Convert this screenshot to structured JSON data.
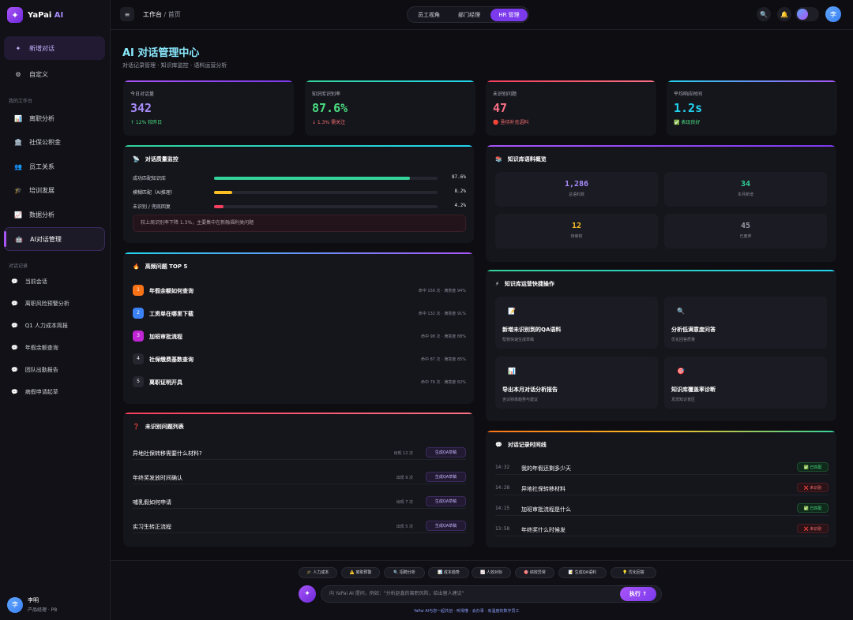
{
  "app": {
    "logo_main": "YaPai",
    "logo_accent": " AI"
  },
  "sidebar": {
    "new_chat": "新增对话",
    "custom": "自定义",
    "section_my": "我的工作台",
    "items": [
      {
        "icon": "📊",
        "label": "离职分析"
      },
      {
        "icon": "🏛️",
        "label": "社保公积金"
      },
      {
        "icon": "👥",
        "label": "员工关系"
      },
      {
        "icon": "🎓",
        "label": "培训发展"
      },
      {
        "icon": "📈",
        "label": "数据分析"
      },
      {
        "icon": "🤖",
        "label": "AI对话管理"
      }
    ],
    "section_history": "对话记录",
    "history": [
      "当前会话",
      "离职风险预警分析",
      "Q1 人力成本简报",
      "年假余额查询",
      "团队出勤报告",
      "病假申请起草"
    ],
    "user": {
      "avatar": "李",
      "name": "李明",
      "role": "产品经理 · P8"
    }
  },
  "topbar": {
    "menu_icon": "≡",
    "crumb_main": "工作台",
    "crumb_sep": " / ",
    "crumb_sub": "首页",
    "views": [
      "员工视角",
      "部门经理",
      "HR 管理"
    ],
    "avatar": "李"
  },
  "page": {
    "title": "AI 对话管理中心",
    "subtitle": "对话记录管理 · 知识库监控 · 语料运营分析"
  },
  "stats": [
    {
      "label": "今日对话量",
      "value": "342",
      "change": "↑ 12% 较昨日",
      "color": "#a78bfa",
      "change_color": "#4ade80",
      "bar": "linear-gradient(90deg,#a855f7,#7c3aed)"
    },
    {
      "label": "知识库识别率",
      "value": "87.6%",
      "change": "↓ 1.3% 需关注",
      "color": "#4ade80",
      "change_color": "#f87171",
      "bar": "linear-gradient(90deg,#34d399,#22d3ee)"
    },
    {
      "label": "未识别问题",
      "value": "47",
      "change": "🔴 亟待补充语料",
      "color": "#fb7185",
      "change_color": "#f87171",
      "bar": "linear-gradient(90deg,#f43f5e,#fb7185)"
    },
    {
      "label": "平均响应时间",
      "value": "1.2s",
      "change": "✅ 表现良好",
      "color": "#22d3ee",
      "change_color": "#4ade80",
      "bar": "linear-gradient(90deg,#22d3ee,#a855f7)"
    }
  ],
  "quality": {
    "title": "对话质量监控",
    "icon": "📡",
    "rows": [
      {
        "label": "成功匹配知识库",
        "pct": 87.6,
        "text": "87.6%",
        "color": "#34d399"
      },
      {
        "label": "模糊匹配（AI推理）",
        "pct": 8.2,
        "text": "8.2%",
        "color": "#fbbf24"
      },
      {
        "label": "未识别 / 兜底回复",
        "pct": 4.2,
        "text": "4.2%",
        "color": "#f43f5e"
      }
    ],
    "note": "较上周识别率下降 1.3%，主要集中在新融福利类问题"
  },
  "top5": {
    "title": "高频问题 TOP 5",
    "icon": "🔥",
    "rows": [
      {
        "n": "1",
        "q": "年假余额如何查询",
        "m": "命中 156 次 · 满意度 94%",
        "color": "#f97316"
      },
      {
        "n": "2",
        "q": "工资单在哪里下载",
        "m": "命中 132 次 · 满意度 91%",
        "color": "#3b82f6"
      },
      {
        "n": "3",
        "q": "加班审批流程",
        "m": "命中 98 次 · 满意度 88%",
        "color": "#c026d3"
      },
      {
        "n": "4",
        "q": "社保缴费基数查询",
        "m": "命中 87 次 · 满意度 85%",
        "color": "#26262f"
      },
      {
        "n": "5",
        "q": "离职证明开具",
        "m": "命中 76 次 · 满意度 82%",
        "color": "#26262f"
      }
    ]
  },
  "unrec": {
    "title": "未识别问题列表",
    "icon": "❓",
    "button": "生成QA草稿",
    "rows": [
      {
        "q": "异地社保转移需要什么材料?",
        "c": "出现 12 次"
      },
      {
        "q": "年终奖发放时间确认",
        "c": "出现 9 次"
      },
      {
        "q": "哺乳假如何申请",
        "c": "出现 7 次"
      },
      {
        "q": "实习生转正流程",
        "c": "出现 5 次"
      }
    ]
  },
  "kb": {
    "title": "知识库语料概览",
    "icon": "📚",
    "boxes": [
      {
        "v": "1,286",
        "l": "总语料数",
        "color": "#a78bfa"
      },
      {
        "v": "34",
        "l": "本月新增",
        "color": "#34d399"
      },
      {
        "v": "12",
        "l": "待审核",
        "color": "#fbbf24"
      },
      {
        "v": "45",
        "l": "已废弃",
        "color": "#9a9aa8"
      }
    ]
  },
  "ops": {
    "title": "知识库运营快捷操作",
    "icon": "⚡",
    "items": [
      {
        "icon": "📝",
        "t": "新增未识别到的QA语料",
        "d": "帮我快速生成草稿"
      },
      {
        "icon": "🔍",
        "t": "分析低满意度问答",
        "d": "优化回答质量"
      },
      {
        "icon": "📊",
        "t": "导出本月对话分析报告",
        "d": "含识别率趋势与建议"
      },
      {
        "icon": "🎯",
        "t": "知识库覆盖率诊断",
        "d": "发现知识盲区"
      }
    ]
  },
  "timeline": {
    "title": "对话记录时间线",
    "icon": "💬",
    "rows": [
      {
        "tm": "14:32",
        "q": "我的年假还剩多少天",
        "b": "✅ 已匹配",
        "ok": true
      },
      {
        "tm": "14:28",
        "q": "异地社保转移材料",
        "b": "❌ 未识别",
        "ok": false
      },
      {
        "tm": "14:15",
        "q": "加班审批流程是什么",
        "b": "✅ 已匹配",
        "ok": true
      },
      {
        "tm": "13:58",
        "q": "年终奖什么时候发",
        "b": "❌ 未识别",
        "ok": false
      }
    ]
  },
  "bottom": {
    "chips": [
      "🎓 人力成本",
      "⚠️ 离职预警",
      "🔍 招聘分析",
      "📊 成本趋势",
      "📈 人效对标",
      "🎯 绩效异常",
      "📝 生成QA语料",
      "💡 优化回答"
    ],
    "placeholder": "向 YaPai AI 提问，例如：\"分析赵鑫的离职风险，给出留人建议\"",
    "exec": "执行 ↑",
    "footer": "YaPai AI与您一起共创 · 听得懂 · 会办事 · 有温度的数字员工"
  }
}
